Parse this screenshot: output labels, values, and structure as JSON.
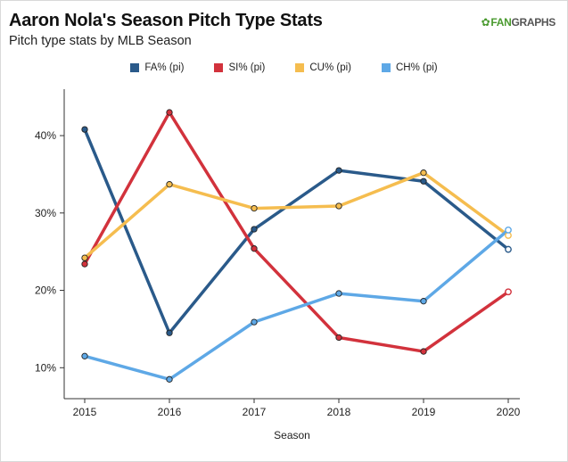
{
  "title": "Aaron Nola's Season Pitch Type Stats",
  "subtitle": "Pitch type stats by MLB Season",
  "logo": {
    "fan": "FAN",
    "graphs": "GRAPHS",
    "icon": "leaf-icon"
  },
  "chart_data": {
    "type": "line",
    "x": [
      "2015",
      "2016",
      "2017",
      "2018",
      "2019",
      "2020"
    ],
    "xlabel": "Season",
    "ylabel": "",
    "ylim": [
      6,
      46
    ],
    "yticks": [
      10,
      20,
      30,
      40
    ],
    "ytick_labels": [
      "10%",
      "20%",
      "30%",
      "40%"
    ],
    "grid": false,
    "legend_position": "top-center",
    "series": [
      {
        "name": "FA% (pi)",
        "color": "#2a5a8a",
        "values": [
          40.8,
          14.5,
          27.9,
          35.5,
          34.1,
          25.3
        ]
      },
      {
        "name": "SI% (pi)",
        "color": "#d2323c",
        "values": [
          23.4,
          43.0,
          25.4,
          13.9,
          12.1,
          19.8
        ]
      },
      {
        "name": "CU% (pi)",
        "color": "#f5bd4f",
        "values": [
          24.2,
          33.7,
          30.6,
          30.9,
          35.2,
          27.1
        ]
      },
      {
        "name": "CH% (pi)",
        "color": "#5ea8e6",
        "values": [
          11.5,
          8.5,
          15.9,
          19.6,
          18.6,
          27.8
        ]
      }
    ]
  }
}
